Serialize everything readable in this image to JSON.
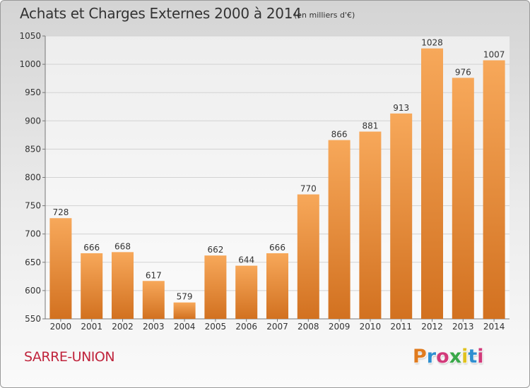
{
  "header": {
    "title": "Achats et Charges Externes 2000 à 2014",
    "subtitle": "(en milliers d'€)"
  },
  "footer": {
    "commune": "SARRE-UNION",
    "logo": "Proxiti"
  },
  "colors": {
    "bar_light": "#f7a85a",
    "bar_dark": "#d27120",
    "commune": "#c0243c",
    "logo_letters": [
      "#e07b1e",
      "#2e8fd0",
      "#d23a7a",
      "#3aa849",
      "#e0c21e",
      "#2e8fd0",
      "#d23a7a"
    ]
  },
  "chart_data": {
    "type": "bar",
    "categories": [
      "2000",
      "2001",
      "2002",
      "2003",
      "2004",
      "2005",
      "2006",
      "2007",
      "2008",
      "2009",
      "2010",
      "2011",
      "2012",
      "2013",
      "2014"
    ],
    "values": [
      728,
      666,
      668,
      617,
      579,
      662,
      644,
      666,
      770,
      866,
      881,
      913,
      1028,
      976,
      1007
    ],
    "ylim": [
      550,
      1050
    ],
    "yticks": [
      550,
      600,
      650,
      700,
      750,
      800,
      850,
      900,
      950,
      1000,
      1050
    ],
    "grid": true,
    "xlabel": "",
    "ylabel": ""
  }
}
